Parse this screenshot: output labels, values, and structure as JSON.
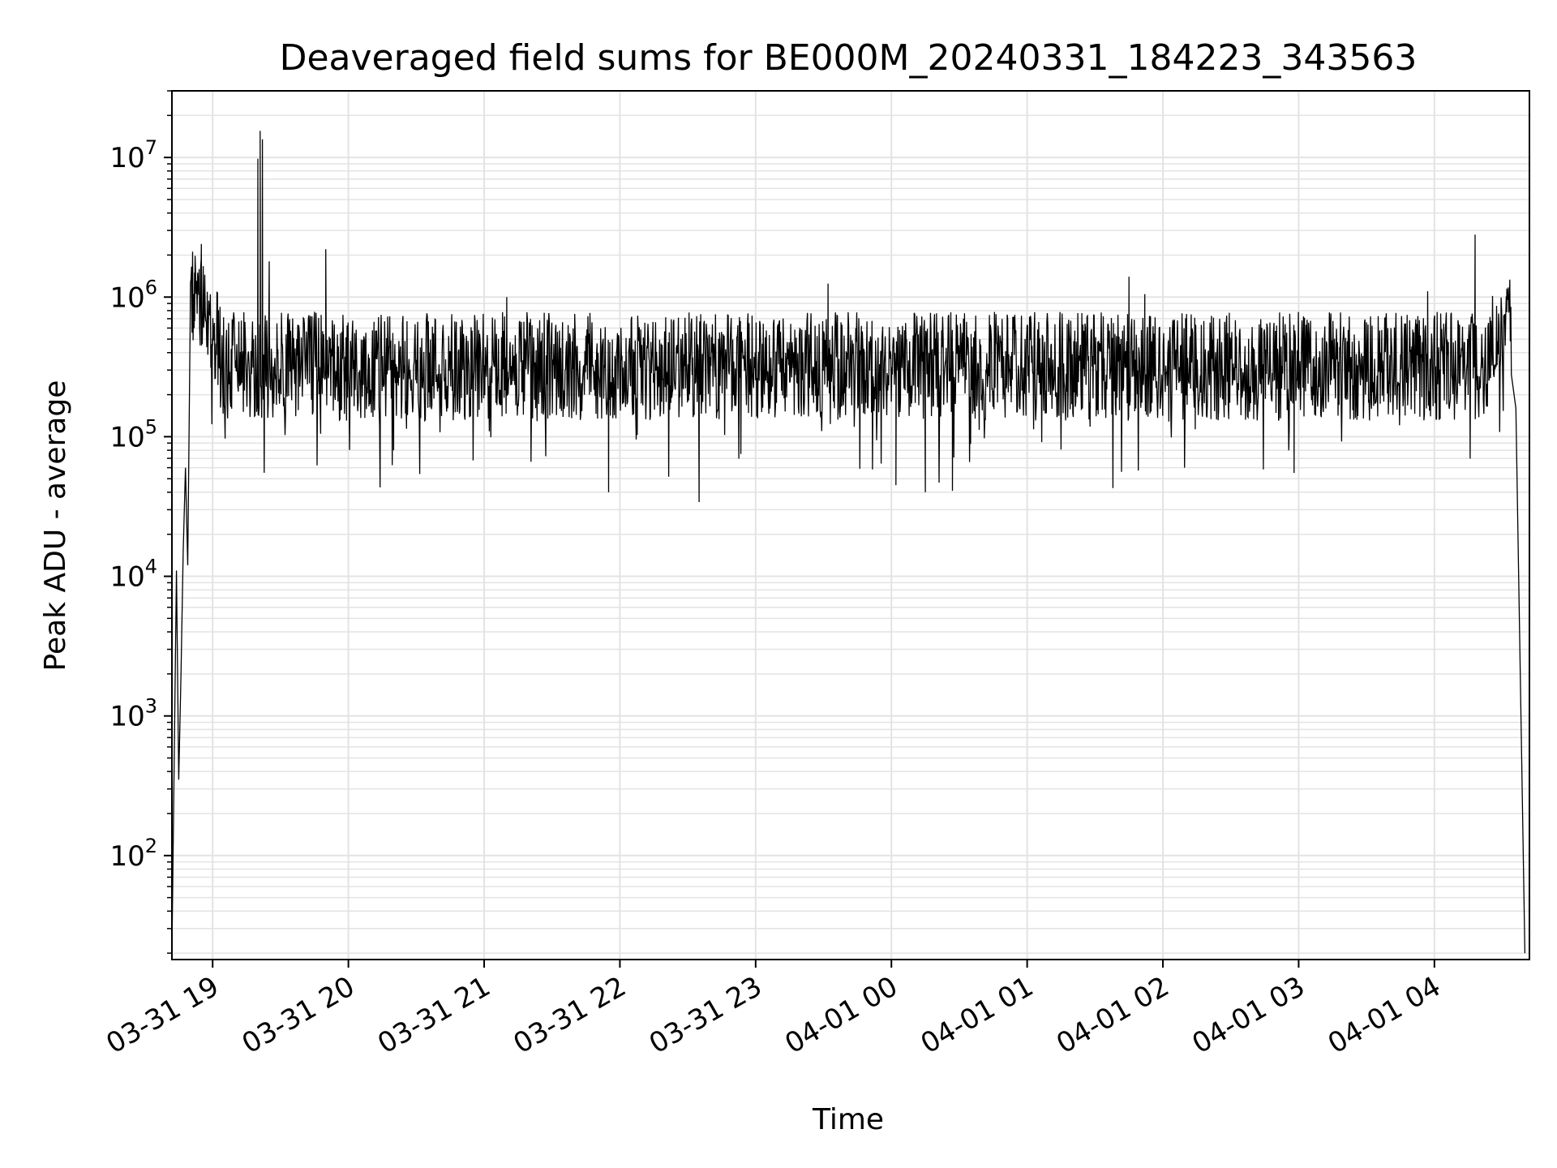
{
  "chart_data": {
    "type": "line",
    "title": "Deaveraged field sums for BE000M_20240331_184223_343563",
    "xlabel": "Time",
    "ylabel": "Peak ADU - average",
    "yscale": "log",
    "ylim": [
      18,
      30000000
    ],
    "xlim": [
      "2024-03-31 18:42",
      "2024-04-01 04:42"
    ],
    "grid": true,
    "line_color": "#000000",
    "grid_color": "#e3e3e3",
    "x_ticks": [
      {
        "value": "2024-03-31 19:00",
        "label": "03-31 19"
      },
      {
        "value": "2024-03-31 20:00",
        "label": "03-31 20"
      },
      {
        "value": "2024-03-31 21:00",
        "label": "03-31 21"
      },
      {
        "value": "2024-03-31 22:00",
        "label": "03-31 22"
      },
      {
        "value": "2024-03-31 23:00",
        "label": "03-31 23"
      },
      {
        "value": "2024-04-01 00:00",
        "label": "04-01 00"
      },
      {
        "value": "2024-04-01 01:00",
        "label": "04-01 01"
      },
      {
        "value": "2024-04-01 02:00",
        "label": "04-01 02"
      },
      {
        "value": "2024-04-01 03:00",
        "label": "04-01 03"
      },
      {
        "value": "2024-04-01 04:00",
        "label": "04-01 04"
      }
    ],
    "y_ticks": [
      {
        "value": 100,
        "base": "10",
        "exp": "2"
      },
      {
        "value": 1000,
        "base": "10",
        "exp": "3"
      },
      {
        "value": 10000,
        "base": "10",
        "exp": "4"
      },
      {
        "value": 100000,
        "base": "10",
        "exp": "5"
      },
      {
        "value": 1000000,
        "base": "10",
        "exp": "6"
      },
      {
        "value": 10000000,
        "base": "10",
        "exp": "7"
      }
    ],
    "series": [
      {
        "baseline_median": 320000,
        "points": [
          {
            "t": "2024-03-31 18:42",
            "y": 20
          },
          {
            "t": "2024-03-31 18:44",
            "y": 11000
          },
          {
            "t": "2024-03-31 18:45",
            "y": 350
          },
          {
            "t": "2024-03-31 18:46",
            "y": 2000
          },
          {
            "t": "2024-03-31 18:47",
            "y": 15000
          },
          {
            "t": "2024-03-31 18:48",
            "y": 60000
          },
          {
            "t": "2024-03-31 18:49",
            "y": 12000
          },
          {
            "t": "2024-03-31 18:50",
            "y": 500000
          },
          {
            "t": "2024-03-31 18:52",
            "y": 1500000
          },
          {
            "t": "2024-03-31 18:55",
            "y": 2400000
          },
          {
            "t": "2024-03-31 19:00",
            "y": 450000
          },
          {
            "t": "2024-03-31 19:20",
            "y": 9800000
          },
          {
            "t": "2024-03-31 19:21",
            "y": 15500000
          },
          {
            "t": "2024-03-31 19:22",
            "y": 13500000
          },
          {
            "t": "2024-03-31 19:25",
            "y": 1800000
          },
          {
            "t": "2024-03-31 19:50",
            "y": 2200000
          },
          {
            "t": "2024-03-31 20:20",
            "y": 80000
          },
          {
            "t": "2024-03-31 21:10",
            "y": 1000000
          },
          {
            "t": "2024-03-31 21:55",
            "y": 40000
          },
          {
            "t": "2024-03-31 22:35",
            "y": 34000
          },
          {
            "t": "2024-03-31 23:32",
            "y": 1250000
          },
          {
            "t": "2024-04-01 00:02",
            "y": 45000
          },
          {
            "t": "2024-04-01 00:15",
            "y": 40000
          },
          {
            "t": "2024-04-01 00:27",
            "y": 41000
          },
          {
            "t": "2024-04-01 01:45",
            "y": 1400000
          },
          {
            "t": "2024-04-01 01:52",
            "y": 1050000
          },
          {
            "t": "2024-04-01 02:58",
            "y": 55000
          },
          {
            "t": "2024-04-01 03:57",
            "y": 1100000
          },
          {
            "t": "2024-04-01 04:18",
            "y": 2800000
          },
          {
            "t": "2024-04-01 04:32",
            "y": 1150000
          },
          {
            "t": "2024-04-01 04:36",
            "y": 160000
          },
          {
            "t": "2024-04-01 04:40",
            "y": 20
          }
        ]
      }
    ]
  }
}
